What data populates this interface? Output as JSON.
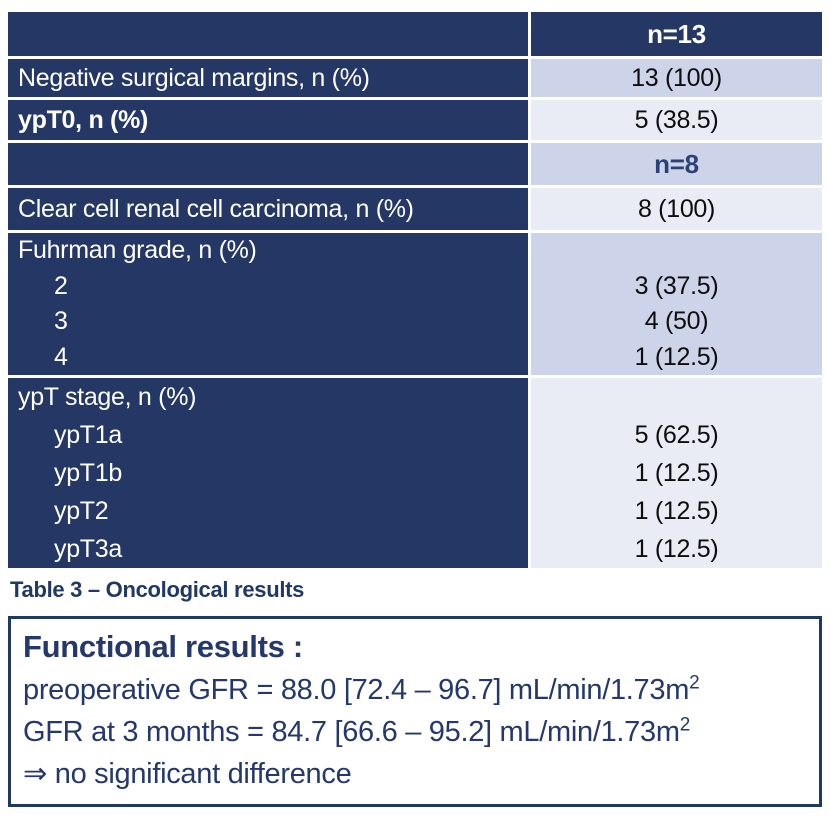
{
  "colors": {
    "navy": "#253765",
    "navy_text": "#203864",
    "lavender_medium": "#cdd3e8",
    "lavender_light": "#e9ebf5",
    "value_text": "#0d0d0d",
    "white_text": "#ffffff"
  },
  "table": {
    "header": {
      "label": "",
      "value": "n=13"
    },
    "rows": [
      {
        "label": "Negative surgical margins, n (%)",
        "value": "13 (100)"
      },
      {
        "label": "ypT0, n (%)",
        "value": "5 (38.5)"
      },
      {
        "label": "",
        "value": "n=8"
      },
      {
        "label": "Clear cell renal cell carcinoma, n (%)",
        "value": "8 (100)"
      },
      {
        "label": "Fuhrman grade, n (%)",
        "subrows": [
          {
            "label": "2",
            "value": "3 (37.5)"
          },
          {
            "label": "3",
            "value": "4 (50)"
          },
          {
            "label": "4",
            "value": "1 (12.5)"
          }
        ]
      },
      {
        "label": "ypT stage, n (%)",
        "subrows": [
          {
            "label": "ypT1a",
            "value": "5 (62.5)"
          },
          {
            "label": "ypT1b",
            "value": "1 (12.5)"
          },
          {
            "label": "ypT2",
            "value": "1 (12.5)"
          },
          {
            "label": "ypT3a",
            "value": "1 (12.5)"
          }
        ]
      }
    ]
  },
  "caption": "Table 3 – Oncological results",
  "functional_box": {
    "title": "Functional results :",
    "lines": [
      {
        "text": "preoperative GFR = 88.0 [72.4 – 96.7] mL/min/1.73m",
        "sup": "2"
      },
      {
        "text": "GFR at 3 months = 84.7 [66.6 – 95.2] mL/min/1.73m",
        "sup": "2"
      },
      {
        "text": "⇒ no significant difference",
        "sup": ""
      }
    ]
  }
}
